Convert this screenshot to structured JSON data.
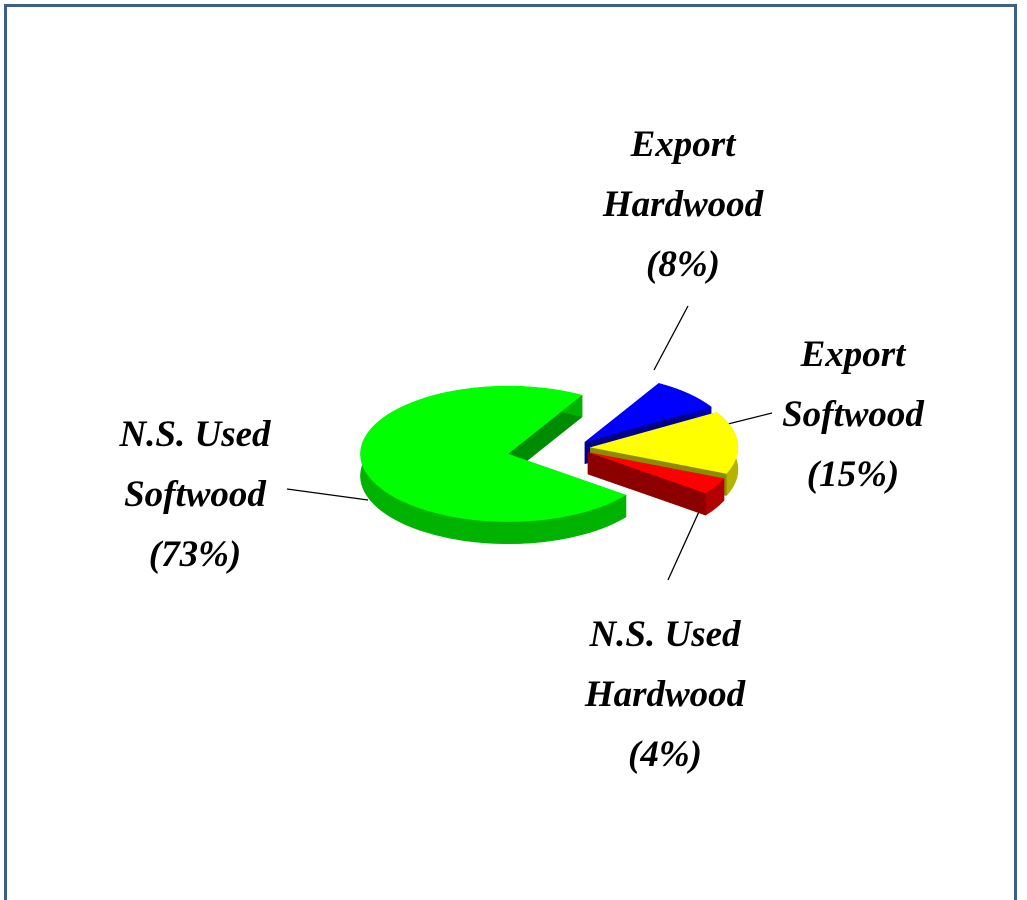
{
  "chart_data": {
    "type": "pie",
    "categories": [
      "Export Hardwood",
      "Export Softwood",
      "N.S. Used Hardwood",
      "N.S. Used Softwood"
    ],
    "values": [
      8,
      15,
      4,
      73
    ],
    "value_labels": [
      "(8%)",
      "(15%)",
      "(4%)",
      "(73%)"
    ],
    "colors": [
      "#0000ff",
      "#ffff00",
      "#ff0000",
      "#00ff00"
    ]
  }
}
